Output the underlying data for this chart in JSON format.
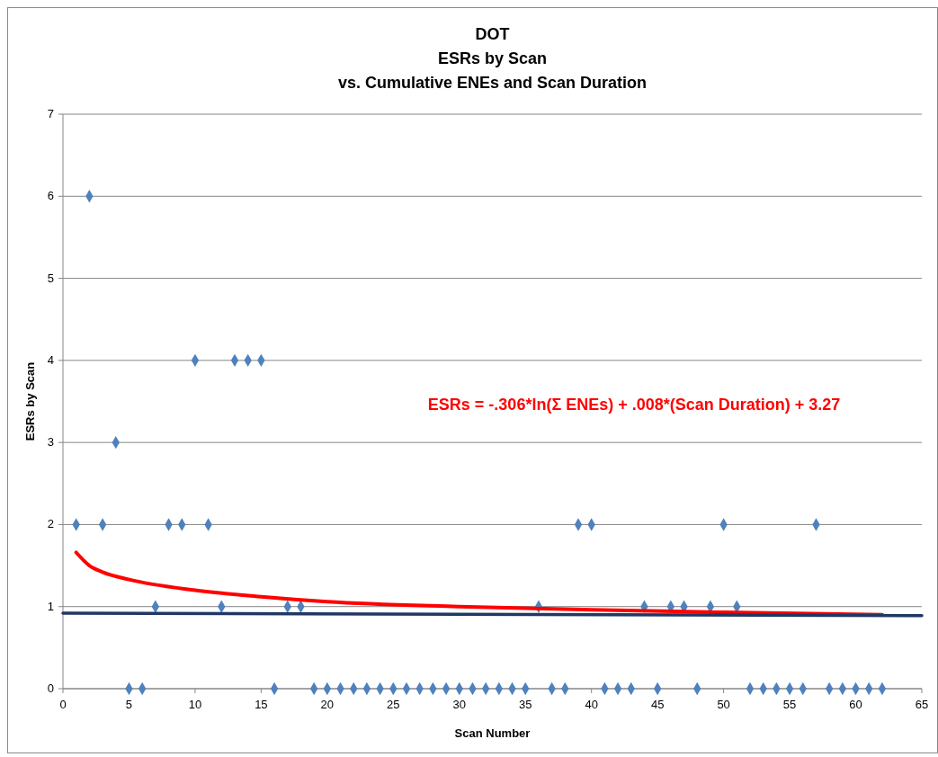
{
  "chart_data": {
    "type": "scatter",
    "title": "DOT",
    "subtitle": "ESRs by Scan\nvs. Cumulative ENEs and Scan Duration",
    "xlabel": "Scan Number",
    "ylabel": "ESRs  by Scan",
    "xlim": [
      0,
      65
    ],
    "xticks": [
      0,
      5,
      10,
      15,
      20,
      25,
      30,
      35,
      40,
      45,
      50,
      55,
      60,
      65
    ],
    "ylim": [
      0,
      7
    ],
    "yticks": [
      0,
      1,
      2,
      3,
      4,
      5,
      6,
      7
    ],
    "grid": "y",
    "annotations": [
      "ESRs = -.306*ln(Σ ENEs) + .008*(Scan Duration) + 3.27"
    ],
    "series": [
      {
        "color": "#4f81bd",
        "marker": "diamond",
        "x": [
          1,
          2,
          3,
          4,
          5,
          6,
          7,
          8,
          9,
          10,
          11,
          12,
          13,
          14,
          15,
          16,
          17,
          18,
          19,
          20,
          21,
          22,
          23,
          24,
          25,
          26,
          27,
          28,
          29,
          30,
          31,
          32,
          33,
          34,
          35,
          36,
          37,
          38,
          39,
          40,
          41,
          42,
          43,
          44,
          45,
          46,
          47,
          48,
          49,
          50,
          51,
          52,
          53,
          54,
          55,
          56,
          57,
          58,
          59,
          60,
          61,
          62
        ],
        "values": [
          2,
          6,
          2,
          3,
          0,
          0,
          1,
          2,
          2,
          4,
          2,
          1,
          4,
          4,
          4,
          0,
          1,
          1,
          0,
          0,
          0,
          0,
          0,
          0,
          0,
          0,
          0,
          0,
          0,
          0,
          0,
          0,
          0,
          0,
          0,
          1,
          0,
          0,
          2,
          2,
          0,
          0,
          0,
          1,
          0,
          1,
          1,
          0,
          1,
          2,
          1,
          0,
          0,
          0,
          0,
          0,
          2,
          0,
          0,
          0,
          0,
          0
        ]
      },
      {
        "type": "line",
        "color": "#ff0000",
        "marker": "none",
        "line_style": "solid",
        "x": [
          1,
          2,
          3,
          5,
          10,
          15,
          20,
          30,
          40,
          50,
          62
        ],
        "values": [
          1.66,
          1.5,
          1.42,
          1.33,
          1.2,
          1.12,
          1.06,
          1.0,
          0.96,
          0.93,
          0.9
        ]
      },
      {
        "type": "line",
        "color": "#1f3864",
        "marker": "none",
        "line_style": "solid",
        "x": [
          0,
          65
        ],
        "values": [
          0.92,
          0.89
        ]
      }
    ]
  }
}
